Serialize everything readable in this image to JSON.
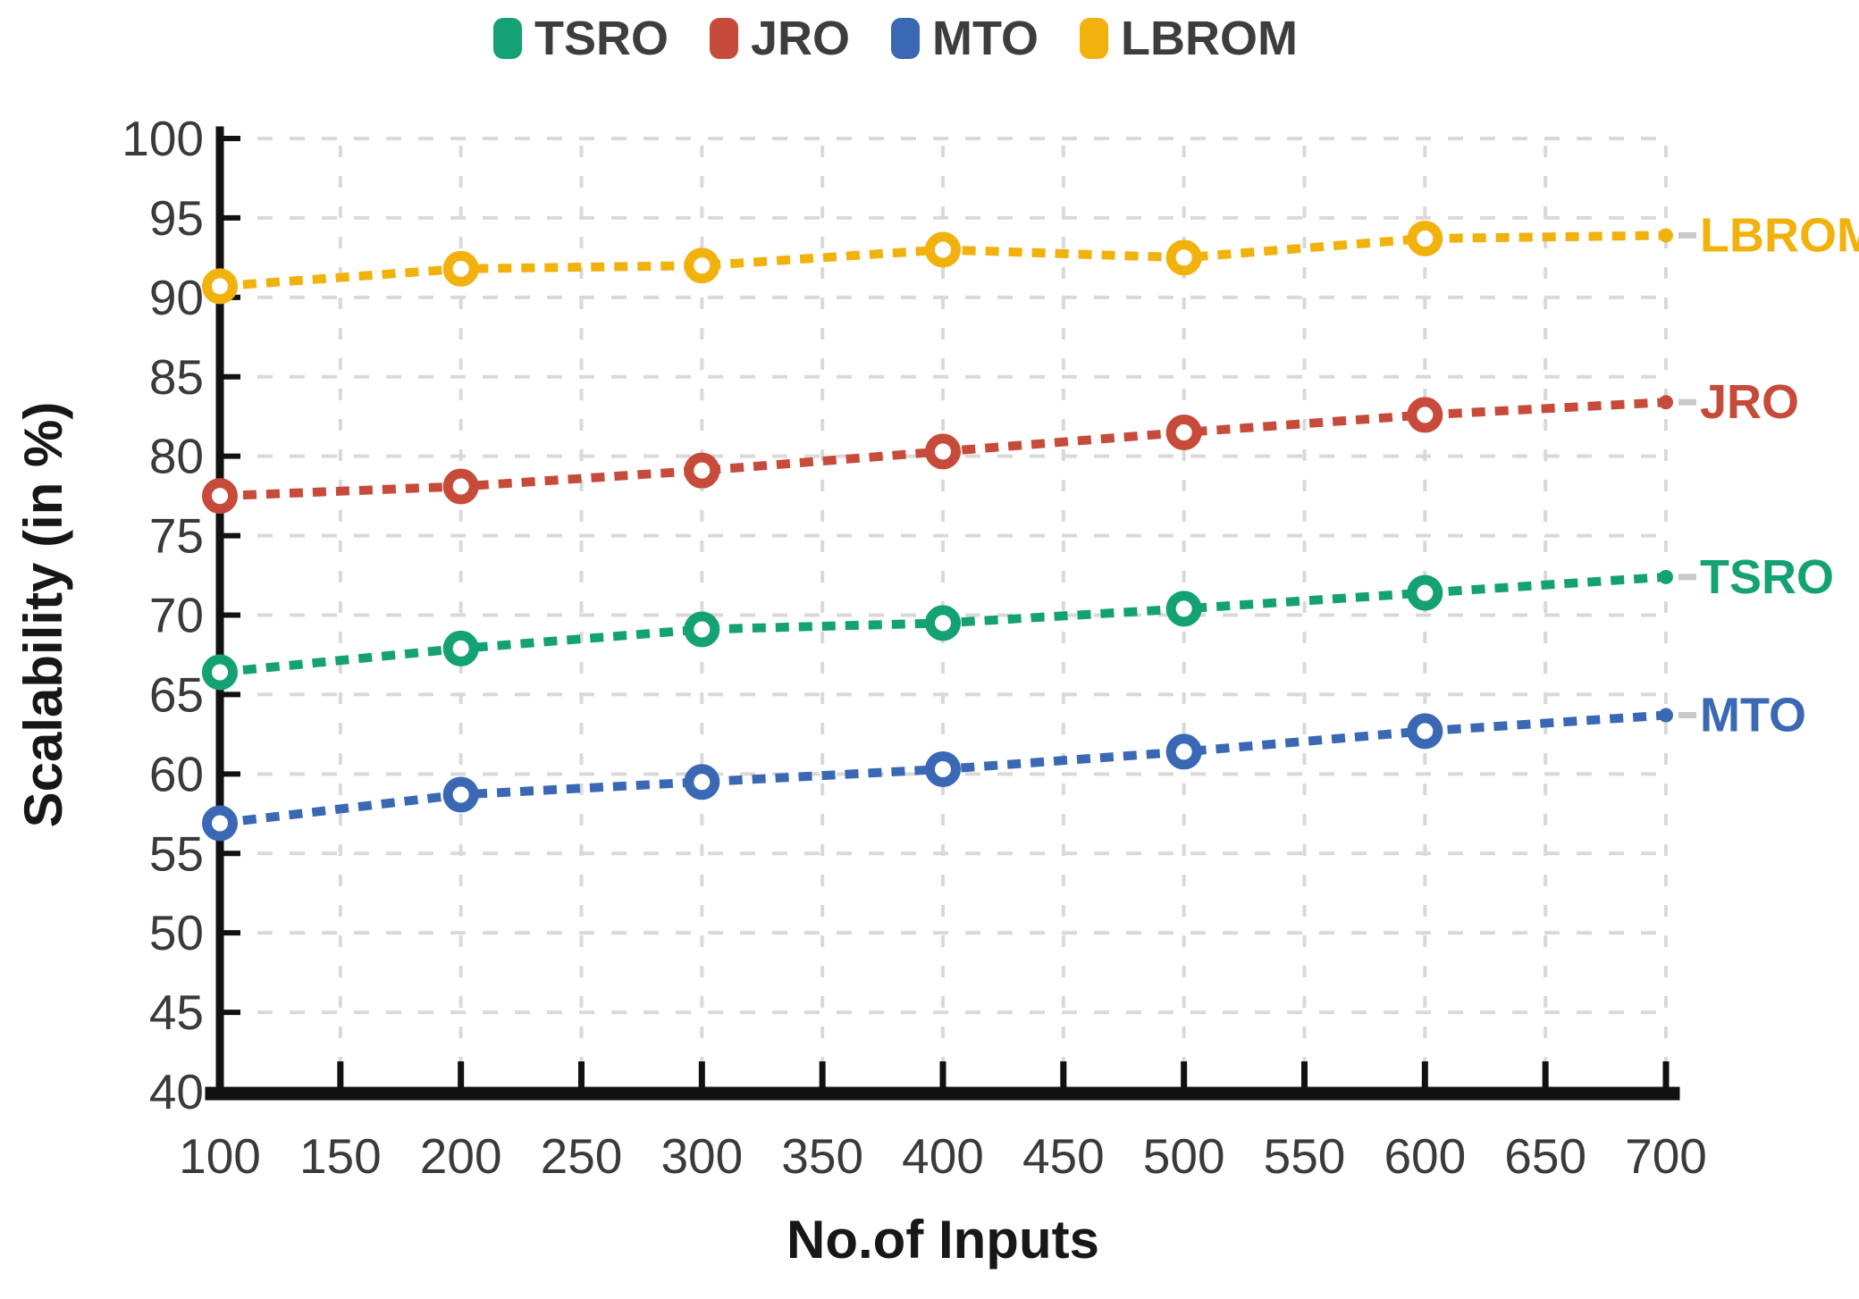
{
  "chart_data": {
    "type": "line",
    "title": "",
    "xlabel": "No.of Inputs",
    "ylabel": "Scalability (in %)",
    "x": [
      100,
      200,
      300,
      400,
      500,
      600
    ],
    "line_end_x": 700,
    "xlim": [
      100,
      700
    ],
    "ylim": [
      40,
      100
    ],
    "x_ticks": [
      100,
      150,
      200,
      250,
      300,
      350,
      400,
      450,
      500,
      550,
      600,
      650,
      700
    ],
    "y_ticks": [
      40,
      45,
      50,
      55,
      60,
      65,
      70,
      75,
      80,
      85,
      90,
      95,
      100
    ],
    "grid": true,
    "line_style": "dashed",
    "marker": "open-circle",
    "legend_position": "top-center",
    "legend": [
      "TSRO",
      "JRO",
      "MTO",
      "LBROM"
    ],
    "series": [
      {
        "name": "TSRO",
        "color": "#14A173",
        "values": [
          66.4,
          67.9,
          69.1,
          69.5,
          70.4,
          71.4
        ],
        "end_value": 72.4
      },
      {
        "name": "JRO",
        "color": "#C74B3B",
        "values": [
          77.5,
          78.1,
          79.1,
          80.3,
          81.5,
          82.6
        ],
        "end_value": 83.4
      },
      {
        "name": "MTO",
        "color": "#3A68B4",
        "values": [
          56.9,
          58.7,
          59.5,
          60.3,
          61.4,
          62.7
        ],
        "end_value": 63.7
      },
      {
        "name": "LBROM",
        "color": "#F2B20E",
        "values": [
          90.7,
          91.8,
          92.0,
          93.0,
          92.5,
          93.7
        ],
        "end_value": 93.9
      }
    ],
    "colors": {
      "axis": "#111111",
      "grid": "#D9D9D9",
      "tick_label": "#3A3A3A",
      "axis_title": "#171717",
      "legend_label": "#3D3D3D",
      "end_dash": "#C9C9C9",
      "background": "#FFFFFF"
    }
  }
}
